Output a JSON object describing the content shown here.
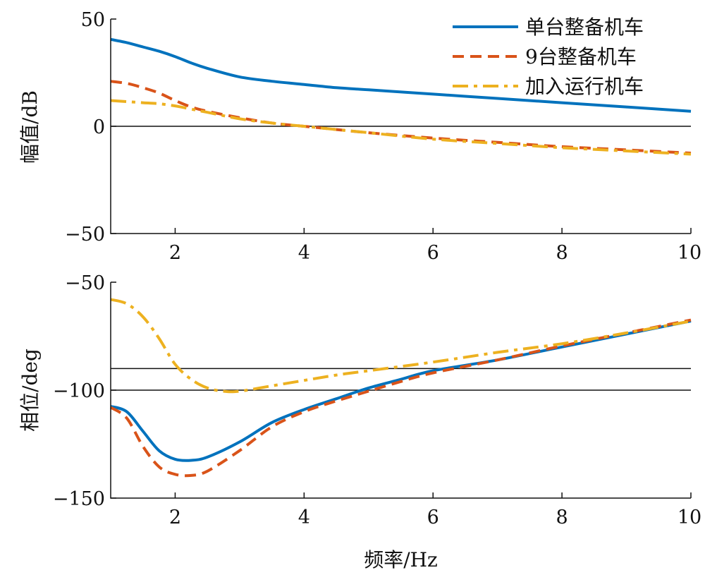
{
  "chart_data": [
    {
      "type": "line",
      "title": "",
      "xlabel": "",
      "ylabel": "幅值/dB",
      "xlim": [
        1,
        10
      ],
      "ylim": [
        -50,
        50
      ],
      "xticks": [
        2,
        4,
        6,
        8,
        10
      ],
      "yticks": [
        -50,
        0,
        50
      ],
      "ytick_labels": [
        "−50",
        "0",
        "50"
      ],
      "reference_lines_y": [
        0
      ],
      "legend_placement": "top-right",
      "series": [
        {
          "name": "单台整备机车",
          "color": "#0072BD",
          "style": "solid",
          "x": [
            1,
            1.25,
            1.5,
            1.75,
            2,
            2.25,
            2.5,
            3,
            3.5,
            4,
            4.5,
            5,
            6,
            7,
            8,
            9,
            10
          ],
          "values": [
            40.5,
            39,
            37,
            35,
            32.5,
            29.5,
            27,
            23,
            21,
            19.5,
            18,
            17,
            15,
            13,
            11,
            9,
            7
          ]
        },
        {
          "name": "9台整备机车",
          "color": "#D95319",
          "style": "dashed",
          "x": [
            1,
            1.25,
            1.5,
            1.75,
            2,
            2.25,
            2.5,
            3,
            3.5,
            4,
            4.5,
            5,
            6,
            7,
            8,
            9,
            10
          ],
          "values": [
            21,
            20,
            18,
            15.5,
            12,
            9,
            7,
            4,
            1.5,
            0,
            -1.5,
            -3,
            -5.5,
            -7.5,
            -9.5,
            -11,
            -12.5
          ]
        },
        {
          "name": "加入运行机车",
          "color": "#EDB120",
          "style": "dashdot",
          "x": [
            1,
            1.25,
            1.5,
            1.75,
            2,
            2.25,
            2.5,
            3,
            3.5,
            4,
            4.5,
            5,
            6,
            7,
            8,
            9,
            10
          ],
          "values": [
            12,
            11.5,
            11,
            10.5,
            9.5,
            8,
            6.5,
            3.5,
            1.5,
            0,
            -1.5,
            -3,
            -6,
            -8,
            -10,
            -11.5,
            -13
          ]
        }
      ]
    },
    {
      "type": "line",
      "title": "",
      "xlabel": "频率/Hz",
      "ylabel": "相位/deg",
      "xlim": [
        1,
        10
      ],
      "ylim": [
        -150,
        -50
      ],
      "xticks": [
        2,
        4,
        6,
        8,
        10
      ],
      "yticks": [
        -150,
        -100,
        -50
      ],
      "ytick_labels": [
        "−150",
        "−100",
        "−50"
      ],
      "reference_lines_y": [
        -90,
        -100
      ],
      "series": [
        {
          "name": "单台整备机车",
          "color": "#0072BD",
          "style": "solid",
          "x": [
            1,
            1.25,
            1.5,
            1.75,
            2,
            2.25,
            2.5,
            3,
            3.5,
            4,
            4.5,
            5,
            5.5,
            6,
            7,
            8,
            9,
            10
          ],
          "values": [
            -107.5,
            -110,
            -119,
            -128,
            -132,
            -132.5,
            -131,
            -124,
            -115,
            -109,
            -104,
            -99,
            -95,
            -91,
            -86,
            -80,
            -74,
            -68
          ]
        },
        {
          "name": "9台整备机车",
          "color": "#D95319",
          "style": "dashed",
          "x": [
            1,
            1.25,
            1.5,
            1.75,
            2,
            2.25,
            2.5,
            3,
            3.5,
            4,
            4.5,
            5,
            5.5,
            6,
            7,
            8,
            9,
            10
          ],
          "values": [
            -108,
            -113,
            -126,
            -135.5,
            -139,
            -139.5,
            -137.5,
            -128,
            -117,
            -110,
            -105,
            -100.5,
            -96,
            -92,
            -86,
            -79.5,
            -73.5,
            -67.5
          ]
        },
        {
          "name": "加入运行机车",
          "color": "#EDB120",
          "style": "dashdot",
          "x": [
            1,
            1.25,
            1.5,
            1.75,
            2,
            2.25,
            2.5,
            2.75,
            3,
            3.5,
            4,
            4.5,
            5,
            6,
            7,
            8,
            9,
            10
          ],
          "values": [
            -58,
            -60,
            -66,
            -76,
            -88,
            -95,
            -99,
            -100.5,
            -100.5,
            -98,
            -95.5,
            -93,
            -91,
            -87,
            -82.5,
            -78.5,
            -73.5,
            -68
          ]
        }
      ]
    }
  ]
}
